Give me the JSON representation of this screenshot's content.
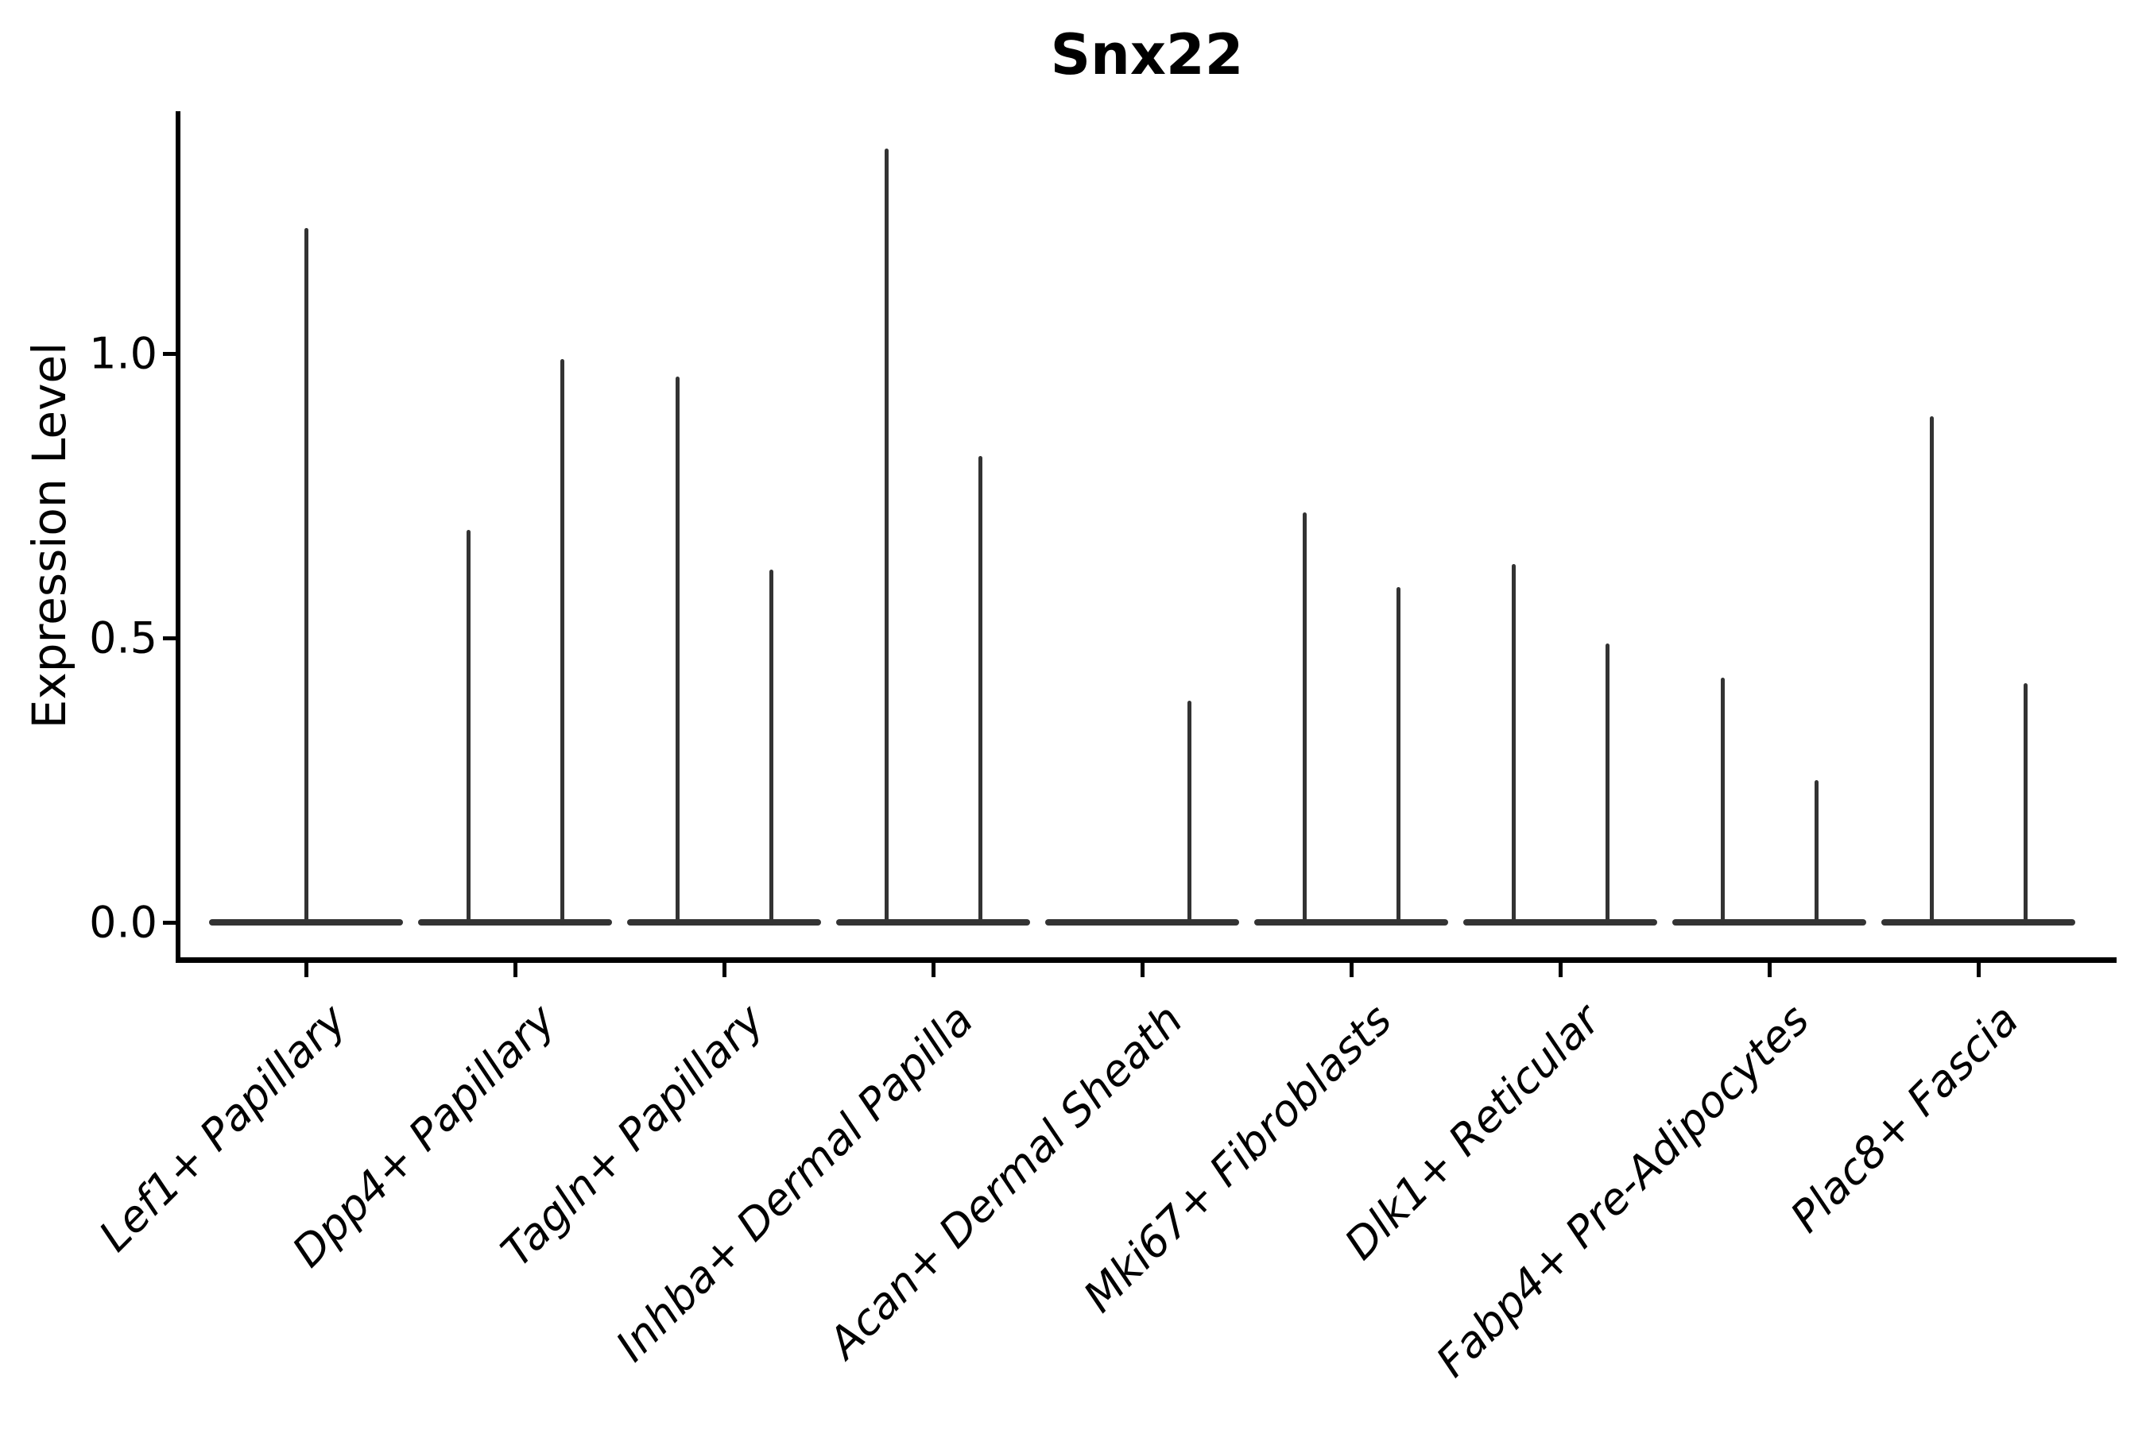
{
  "chart_data": {
    "type": "violin",
    "title": "Snx22",
    "ylabel": "Expression Level",
    "xlabel": "",
    "ylim": [
      -0.07,
      1.43
    ],
    "yticks": [
      0.0,
      0.5,
      1.0
    ],
    "ytick_labels": [
      "0.0",
      "0.5",
      "1.0"
    ],
    "grid": false,
    "legend": false,
    "background_color": "#ffffff",
    "axis_color": "#000000",
    "violin_line_color": "#333333",
    "x_tick_label_style": "italic, rotated 45 degrees",
    "categories": [
      "Lef1+ Papillary",
      "Dpp4+ Papillary",
      "Tagln+ Papillary",
      "Inhba+ Dermal Papilla",
      "Acan+ Dermal Sheath",
      "Mki67+ Fibroblasts",
      "Dlk1+ Reticular",
      "Fabp4+ Pre-Adipocytes",
      "Plac8+ Fascia"
    ],
    "violin_groups": [
      {
        "label": "Lef1+ Papillary",
        "violins": [
          {
            "position": "center",
            "max": 1.22
          }
        ]
      },
      {
        "label": "Dpp4+ Papillary",
        "violins": [
          {
            "position": "left",
            "max": 0.69
          },
          {
            "position": "right",
            "max": 0.99
          }
        ]
      },
      {
        "label": "Tagln+ Papillary",
        "violins": [
          {
            "position": "left",
            "max": 0.96
          },
          {
            "position": "right",
            "max": 0.62
          }
        ]
      },
      {
        "label": "Inhba+ Dermal Papilla",
        "violins": [
          {
            "position": "left",
            "max": 1.36
          },
          {
            "position": "right",
            "max": 0.82
          }
        ]
      },
      {
        "label": "Acan+ Dermal Sheath",
        "violins": [
          {
            "position": "right",
            "max": 0.39
          }
        ]
      },
      {
        "label": "Mki67+ Fibroblasts",
        "violins": [
          {
            "position": "left",
            "max": 0.72
          },
          {
            "position": "right",
            "max": 0.59
          }
        ]
      },
      {
        "label": "Dlk1+ Reticular",
        "violins": [
          {
            "position": "left",
            "max": 0.63
          },
          {
            "position": "right",
            "max": 0.49
          }
        ]
      },
      {
        "label": "Fabp4+ Pre-Adipocytes",
        "violins": [
          {
            "position": "left",
            "max": 0.43
          },
          {
            "position": "right",
            "max": 0.25
          }
        ]
      },
      {
        "label": "Plac8+ Fascia",
        "violins": [
          {
            "position": "left",
            "max": 0.89
          },
          {
            "position": "right",
            "max": 0.42
          }
        ]
      }
    ],
    "note": "Each category shows a violin collapsed to a flat bar at 0 with thin density spikes reaching the max expression value"
  }
}
